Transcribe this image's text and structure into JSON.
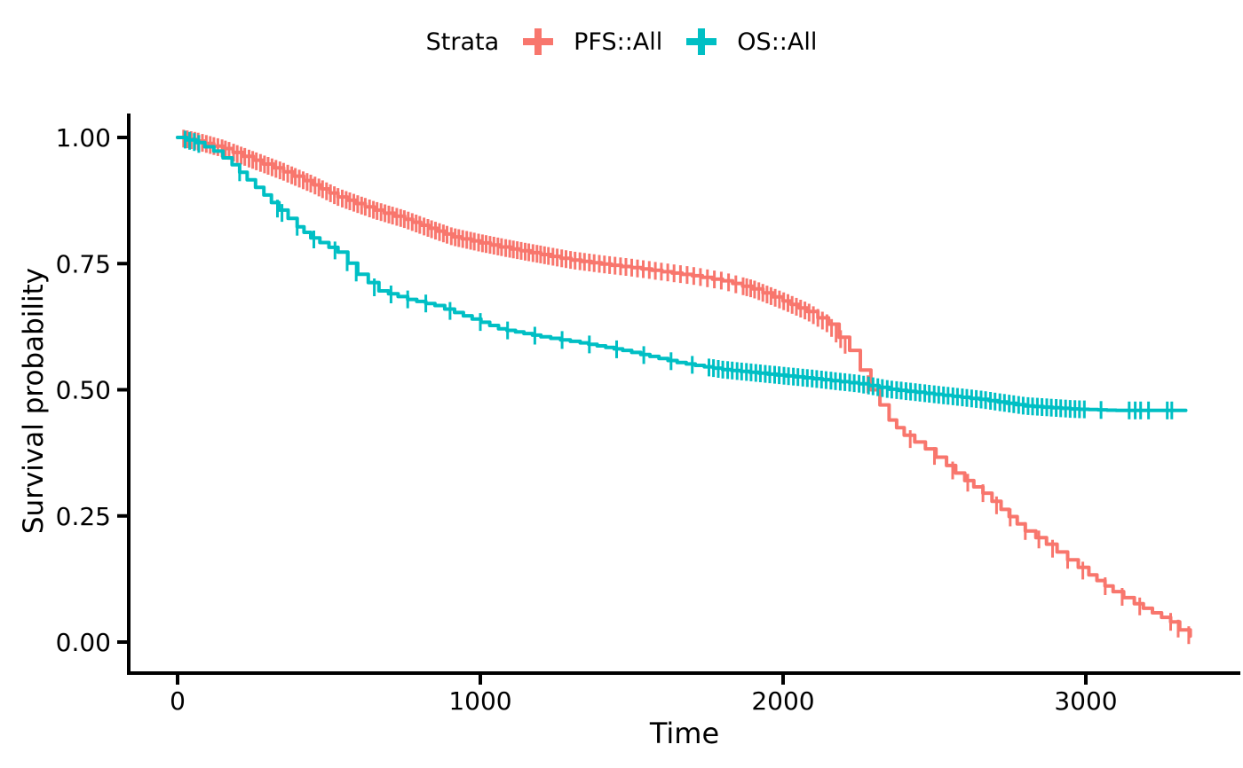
{
  "chart_data": {
    "type": "line",
    "subtype": "kaplan-meier-survival",
    "title": "",
    "xlabel": "Time",
    "ylabel": "Survival probability",
    "xlim": [
      -160,
      3500
    ],
    "ylim": [
      -0.06,
      1.04
    ],
    "xticks": [
      0,
      1000,
      2000,
      3000
    ],
    "xtick_labels": [
      "0",
      "1000",
      "2000",
      "3000"
    ],
    "yticks": [
      0.0,
      0.25,
      0.5,
      0.75,
      1.0
    ],
    "ytick_labels": [
      "0.00",
      "0.25",
      "0.50",
      "0.75",
      "1.00"
    ],
    "grid": false,
    "legend": {
      "title": "Strata",
      "position": "top"
    },
    "axis_color": "#000000",
    "background_color": "#ffffff",
    "series": [
      {
        "name": "PFS::All",
        "color": "#F8766D",
        "points": [
          [
            0,
            1.0
          ],
          [
            60,
            0.993
          ],
          [
            150,
            0.978
          ],
          [
            250,
            0.955
          ],
          [
            350,
            0.932
          ],
          [
            450,
            0.906
          ],
          [
            530,
            0.882
          ],
          [
            650,
            0.856
          ],
          [
            750,
            0.838
          ],
          [
            830,
            0.82
          ],
          [
            910,
            0.803
          ],
          [
            1000,
            0.791
          ],
          [
            1100,
            0.779
          ],
          [
            1200,
            0.768
          ],
          [
            1300,
            0.757
          ],
          [
            1400,
            0.749
          ],
          [
            1500,
            0.742
          ],
          [
            1600,
            0.734
          ],
          [
            1700,
            0.726
          ],
          [
            1800,
            0.716
          ],
          [
            1900,
            0.7
          ],
          [
            2000,
            0.676
          ],
          [
            2080,
            0.655
          ],
          [
            2150,
            0.63
          ],
          [
            2220,
            0.578
          ],
          [
            2290,
            0.5
          ],
          [
            2350,
            0.44
          ],
          [
            2400,
            0.41
          ],
          [
            2470,
            0.383
          ],
          [
            2540,
            0.35
          ],
          [
            2600,
            0.32
          ],
          [
            2660,
            0.295
          ],
          [
            2720,
            0.263
          ],
          [
            2800,
            0.22
          ],
          [
            2870,
            0.194
          ],
          [
            2940,
            0.163
          ],
          [
            3010,
            0.133
          ],
          [
            3090,
            0.1
          ],
          [
            3160,
            0.076
          ],
          [
            3220,
            0.058
          ],
          [
            3280,
            0.04
          ],
          [
            3310,
            0.024
          ],
          [
            3345,
            0.012
          ]
        ],
        "censor_times": [
          20,
          32,
          45,
          57,
          68,
          82,
          95,
          108,
          120,
          133,
          147,
          158,
          170,
          185,
          197,
          210,
          222,
          236,
          248,
          260,
          274,
          287,
          299,
          312,
          325,
          338,
          350,
          364,
          377,
          389,
          402,
          415,
          428,
          440,
          454,
          467,
          479,
          492,
          505,
          518,
          530,
          544,
          557,
          569,
          582,
          595,
          608,
          620,
          634,
          647,
          659,
          672,
          685,
          698,
          710,
          724,
          737,
          749,
          762,
          775,
          788,
          800,
          814,
          827,
          839,
          852,
          865,
          878,
          890,
          904,
          917,
          929,
          942,
          955,
          968,
          980,
          994,
          1007,
          1019,
          1032,
          1045,
          1058,
          1070,
          1084,
          1097,
          1109,
          1122,
          1135,
          1148,
          1160,
          1174,
          1187,
          1199,
          1212,
          1225,
          1240,
          1254,
          1269,
          1283,
          1298,
          1313,
          1329,
          1344,
          1360,
          1376,
          1393,
          1410,
          1427,
          1445,
          1463,
          1481,
          1500,
          1519,
          1538,
          1558,
          1578,
          1598,
          1619,
          1640,
          1661,
          1683,
          1705,
          1727,
          1750,
          1773,
          1796,
          1820,
          1844,
          1868,
          1880,
          1893,
          1906,
          1920,
          1933,
          1947,
          1960,
          1974,
          1988,
          2002,
          2016,
          2030,
          2044,
          2058,
          2072,
          2086,
          2100,
          2115,
          2130,
          2145,
          2160,
          2175,
          2190,
          2205,
          2280,
          2420,
          2500,
          2560,
          2610,
          2660,
          2705,
          2750,
          2800,
          2845,
          2890,
          2940,
          2990,
          3064,
          3120,
          3178,
          3280,
          3305,
          3340
        ]
      },
      {
        "name": "OS::All",
        "color": "#00BFC4",
        "points": [
          [
            0,
            1.0
          ],
          [
            60,
            0.99
          ],
          [
            120,
            0.973
          ],
          [
            180,
            0.946
          ],
          [
            230,
            0.916
          ],
          [
            285,
            0.886
          ],
          [
            335,
            0.856
          ],
          [
            395,
            0.823
          ],
          [
            440,
            0.801
          ],
          [
            530,
            0.773
          ],
          [
            595,
            0.729
          ],
          [
            665,
            0.696
          ],
          [
            760,
            0.679
          ],
          [
            850,
            0.667
          ],
          [
            915,
            0.653
          ],
          [
            1060,
            0.621
          ],
          [
            1200,
            0.605
          ],
          [
            1330,
            0.593
          ],
          [
            1470,
            0.578
          ],
          [
            1650,
            0.554
          ],
          [
            1800,
            0.54
          ],
          [
            1950,
            0.531
          ],
          [
            2100,
            0.522
          ],
          [
            2250,
            0.512
          ],
          [
            2350,
            0.501
          ],
          [
            2500,
            0.491
          ],
          [
            2650,
            0.481
          ],
          [
            2800,
            0.468
          ],
          [
            2950,
            0.462
          ],
          [
            3100,
            0.459
          ],
          [
            3330,
            0.459
          ]
        ],
        "censor_times": [
          25,
          40,
          55,
          70,
          205,
          330,
          345,
          395,
          450,
          520,
          560,
          590,
          650,
          705,
          760,
          820,
          900,
          1000,
          1090,
          1180,
          1270,
          1360,
          1450,
          1540,
          1630,
          1700,
          1755,
          1770,
          1786,
          1801,
          1817,
          1832,
          1848,
          1863,
          1879,
          1894,
          1910,
          1925,
          1941,
          1956,
          1972,
          1987,
          2003,
          2018,
          2034,
          2049,
          2065,
          2080,
          2096,
          2111,
          2127,
          2142,
          2158,
          2173,
          2189,
          2204,
          2220,
          2235,
          2251,
          2266,
          2282,
          2297,
          2313,
          2328,
          2344,
          2359,
          2375,
          2390,
          2406,
          2421,
          2437,
          2452,
          2468,
          2483,
          2499,
          2514,
          2530,
          2545,
          2561,
          2576,
          2592,
          2607,
          2623,
          2638,
          2654,
          2669,
          2685,
          2700,
          2716,
          2731,
          2747,
          2762,
          2778,
          2793,
          2809,
          2824,
          2840,
          2855,
          2871,
          2886,
          2902,
          2917,
          2933,
          2948,
          2964,
          2979,
          2995,
          3050,
          3143,
          3163,
          3181,
          3207,
          3269,
          3284
        ]
      }
    ]
  }
}
